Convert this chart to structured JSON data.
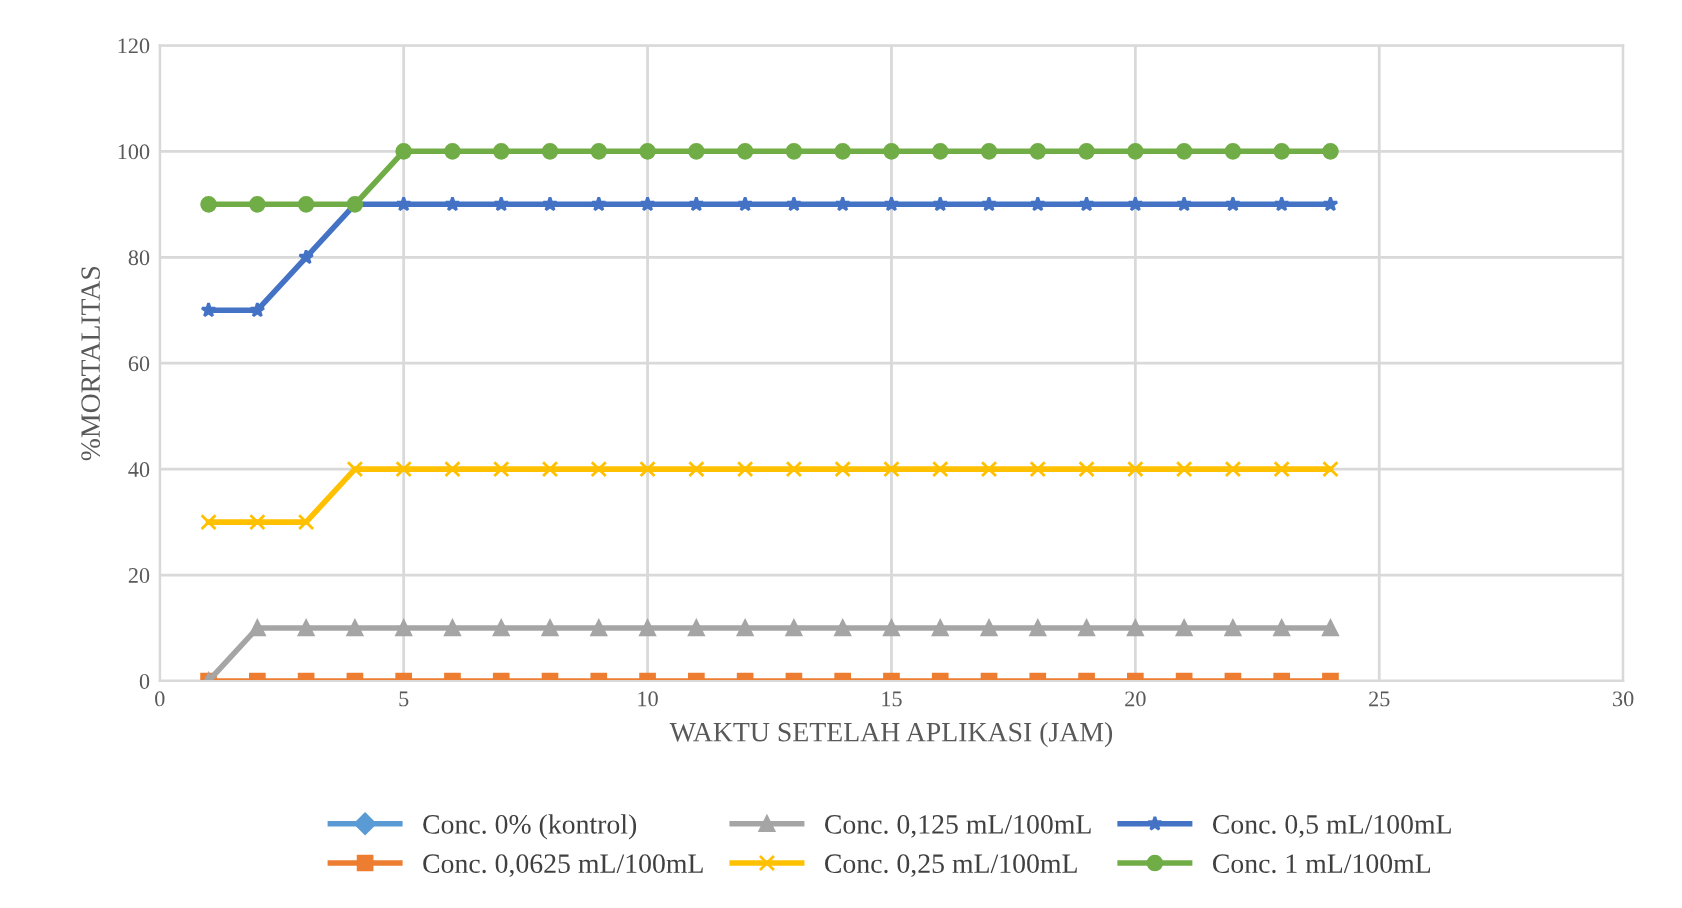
{
  "chart_data": {
    "type": "line",
    "xlabel": "WAKTU SETELAH APLIKASI (JAM)",
    "ylabel": "%MORTALITAS",
    "x": [
      1,
      2,
      3,
      4,
      5,
      6,
      7,
      8,
      9,
      10,
      11,
      12,
      13,
      14,
      15,
      16,
      17,
      18,
      19,
      20,
      21,
      22,
      23,
      24
    ],
    "xlim": [
      0,
      30
    ],
    "xticks": [
      0,
      5,
      10,
      15,
      20,
      25,
      30
    ],
    "ylim": [
      0,
      120
    ],
    "yticks": [
      0,
      20,
      40,
      60,
      80,
      100,
      120
    ],
    "grid": true,
    "legend": "bottom",
    "series": [
      {
        "name": "Conc. 0% (kontrol)",
        "color": "#5b9bd5",
        "marker": "diamond",
        "values": [
          null,
          null,
          null,
          null,
          null,
          null,
          null,
          null,
          null,
          null,
          null,
          null,
          null,
          null,
          null,
          null,
          null,
          null,
          null,
          null,
          null,
          null,
          null,
          null
        ]
      },
      {
        "name": "Conc. 0,0625 mL/100mL",
        "color": "#ed7d31",
        "marker": "square",
        "values": [
          0,
          0,
          0,
          0,
          0,
          0,
          0,
          0,
          0,
          0,
          0,
          0,
          0,
          0,
          0,
          0,
          0,
          0,
          0,
          0,
          0,
          0,
          0,
          0
        ]
      },
      {
        "name": "Conc. 0,125 mL/100mL",
        "color": "#a5a5a5",
        "marker": "triangle",
        "values": [
          0,
          10,
          10,
          10,
          10,
          10,
          10,
          10,
          10,
          10,
          10,
          10,
          10,
          10,
          10,
          10,
          10,
          10,
          10,
          10,
          10,
          10,
          10,
          10
        ]
      },
      {
        "name": "Conc. 0,25 mL/100mL",
        "color": "#ffc000",
        "marker": "cross",
        "values": [
          30,
          30,
          30,
          40,
          40,
          40,
          40,
          40,
          40,
          40,
          40,
          40,
          40,
          40,
          40,
          40,
          40,
          40,
          40,
          40,
          40,
          40,
          40,
          40
        ]
      },
      {
        "name": "Conc. 0,5 mL/100mL",
        "color": "#4472c4",
        "marker": "star",
        "values": [
          70,
          70,
          80,
          90,
          90,
          90,
          90,
          90,
          90,
          90,
          90,
          90,
          90,
          90,
          90,
          90,
          90,
          90,
          90,
          90,
          90,
          90,
          90,
          90
        ]
      },
      {
        "name": "Conc. 1 mL/100mL",
        "color": "#70ad47",
        "marker": "circle",
        "values": [
          90,
          90,
          90,
          90,
          100,
          100,
          100,
          100,
          100,
          100,
          100,
          100,
          100,
          100,
          100,
          100,
          100,
          100,
          100,
          100,
          100,
          100,
          100,
          100
        ]
      }
    ]
  }
}
